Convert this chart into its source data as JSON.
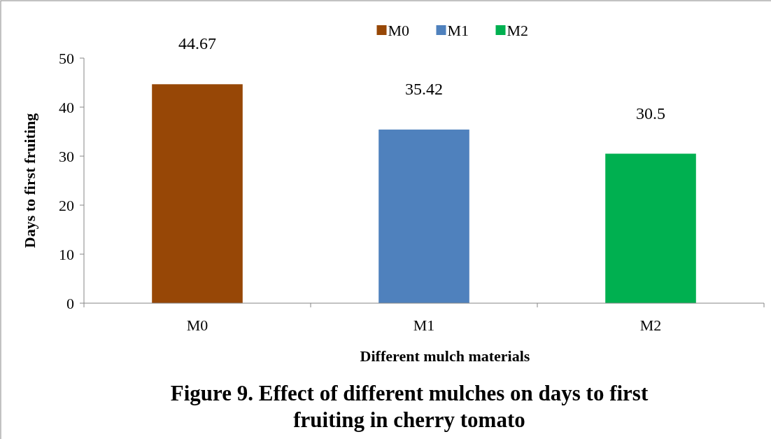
{
  "chart_data": {
    "type": "bar",
    "title": "Figure 9. Effect of different mulches on days to first fruiting in cherry tomato",
    "xlabel": "Different mulch materials",
    "ylabel": "Days to first fruiting",
    "categories": [
      "M0",
      "M1",
      "M2"
    ],
    "series": [
      {
        "name": "M0",
        "color": "#974706",
        "values": [
          44.67,
          null,
          null
        ]
      },
      {
        "name": "M1",
        "color": "#4f81bd",
        "values": [
          null,
          35.42,
          null
        ]
      },
      {
        "name": "M2",
        "color": "#00b050",
        "values": [
          null,
          null,
          30.5
        ]
      }
    ],
    "ylim": [
      0,
      50
    ],
    "yticks": [
      0,
      10,
      20,
      30,
      40,
      50
    ],
    "grid": false,
    "legend": "top",
    "data_labels": true
  }
}
